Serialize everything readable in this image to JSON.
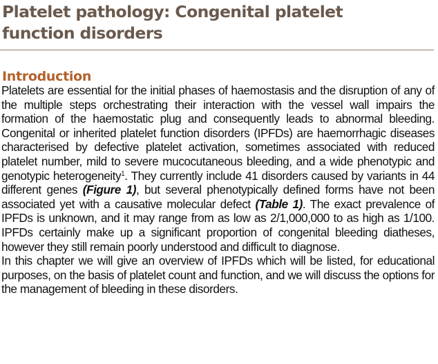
{
  "header": {
    "title_line1": "Platelet pathology: Congenital platelet",
    "title_line2": "function disorders"
  },
  "section": {
    "heading": "Introduction"
  },
  "paragraph1": {
    "part1": "Platelets are essential for the initial phases of haemostasis and the disruption of any of the multiple steps orchestrating their interaction with the vessel wall impairs the formation of the haemostatic plug and consequently leads to abnormal bleeding. Congenital or inherited platelet function disorders (IPFDs) are haemorrhagic diseases characterised by defective platelet activation, sometimes associated with reduced platelet number, mild to severe mucocutaneous bleeding, and a wide phenotypic and genotypic heterogeneity",
    "sup_ref": "1",
    "part2": ". They currently include 41 disorders caused by variants in 44 different genes ",
    "figure_ref": "(Figure 1)",
    "part3": ", but several phenotypically defined forms have not been associated yet with a causative molecular defect ",
    "table_ref": "(Table 1)",
    "part4": ". The exact prevalence of IPFDs is unknown, and it may range from as low as 2/1,000,000 to as high as 1/100. IPFDs certainly make up a significant proportion of congenital bleeding diatheses, however they still remain poorly understood and difficult to diagnose."
  },
  "paragraph2": {
    "text": "In this chapter we will give an overview of IPFDs which will be listed, for educational purposes, on the basis of platelet count and function, and we will discuss the options for the management of bleeding in these disorders."
  },
  "colors": {
    "title": "#6a5a4d",
    "heading": "#b2622a",
    "rule": "#8c7a6a",
    "text": "#111111"
  }
}
